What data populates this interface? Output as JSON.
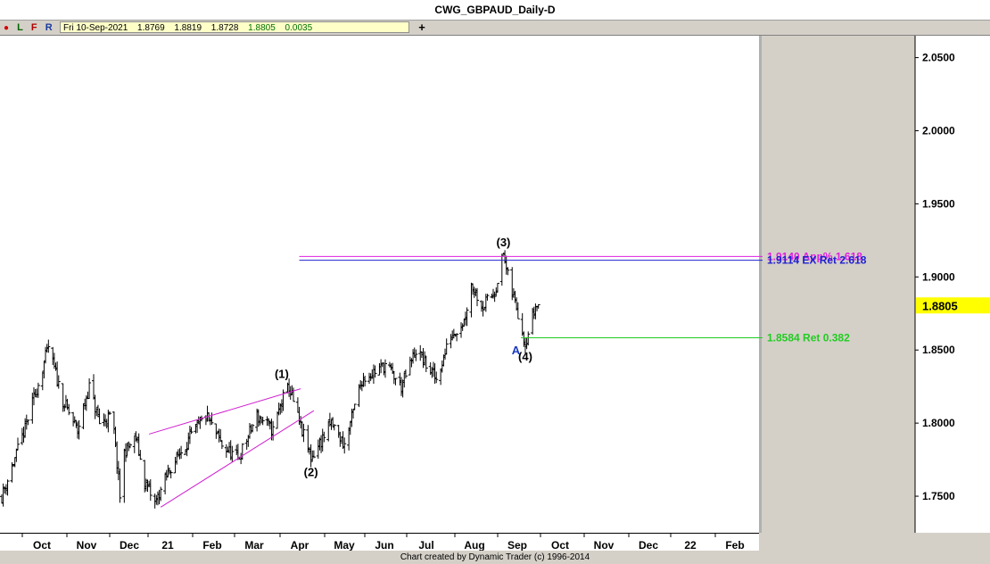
{
  "window": {
    "title": "CWG_GBPAUD_Daily-D"
  },
  "toolbar": {
    "letters": [
      "L",
      "F",
      "R"
    ],
    "ohlc": {
      "date": "Fri 10-Sep-2021",
      "open": "1.8769",
      "high": "1.8819",
      "low": "1.8728",
      "close": "1.8805",
      "change": "0.0035"
    },
    "plus_label": "+"
  },
  "footer": {
    "credit": "Chart created by Dynamic Trader  (c) 1996-2014"
  },
  "colors": {
    "price_bars": "#000000",
    "wedge": "#d020d0",
    "extension_magenta": "#e020e0",
    "extension_blue": "#2020d0",
    "retracement": "#22cc22",
    "wave_a": "#1a3ac0",
    "last_price_bg": "#ffff00"
  },
  "chart_data": {
    "type": "ohlc-bar",
    "symbol": "GBPAUD",
    "timeframe": "Daily",
    "y_axis": {
      "range": [
        1.725,
        2.065
      ],
      "ticks": [
        "2.0500",
        "2.0000",
        "1.9500",
        "1.9000",
        "1.8500",
        "1.8000",
        "1.7500"
      ],
      "last_price": "1.8805"
    },
    "x_axis": {
      "labels": [
        "Oct",
        "Nov",
        "Dec",
        "21",
        "Feb",
        "Mar",
        "Apr",
        "May",
        "Jun",
        "Jul",
        "Aug",
        "Sep",
        "Oct",
        "Nov",
        "Dec",
        "22",
        "Feb"
      ]
    },
    "path": [
      [
        "2020-09-21",
        1.75
      ],
      [
        "2020-10-05",
        1.79
      ],
      [
        "2020-10-14",
        1.82
      ],
      [
        "2020-10-23",
        1.852
      ],
      [
        "2020-11-02",
        1.815
      ],
      [
        "2020-11-12",
        1.795
      ],
      [
        "2020-11-20",
        1.825
      ],
      [
        "2020-11-27",
        1.8
      ],
      [
        "2020-12-06",
        1.805
      ],
      [
        "2020-12-11",
        1.75
      ],
      [
        "2020-12-14",
        1.78
      ],
      [
        "2020-12-22",
        1.79
      ],
      [
        "2020-12-28",
        1.76
      ],
      [
        "2021-01-04",
        1.745
      ],
      [
        "2021-01-15",
        1.77
      ],
      [
        "2021-01-28",
        1.79
      ],
      [
        "2021-02-08",
        1.805
      ],
      [
        "2021-02-19",
        1.785
      ],
      [
        "2021-03-02",
        1.775
      ],
      [
        "2021-03-15",
        1.805
      ],
      [
        "2021-03-26",
        1.795
      ],
      [
        "2021-04-01",
        1.815
      ],
      [
        "2021-04-06",
        1.825
      ],
      [
        "2021-04-13",
        1.8
      ],
      [
        "2021-04-21",
        1.776
      ],
      [
        "2021-05-05",
        1.8
      ],
      [
        "2021-05-14",
        1.785
      ],
      [
        "2021-05-26",
        1.83
      ],
      [
        "2021-06-11",
        1.84
      ],
      [
        "2021-06-22",
        1.825
      ],
      [
        "2021-07-02",
        1.85
      ],
      [
        "2021-07-16",
        1.83
      ],
      [
        "2021-07-26",
        1.86
      ],
      [
        "2021-08-04",
        1.87
      ],
      [
        "2021-08-09",
        1.895
      ],
      [
        "2021-08-17",
        1.88
      ],
      [
        "2021-08-25",
        1.89
      ],
      [
        "2021-08-31",
        1.9155
      ],
      [
        "2021-09-04",
        1.895
      ],
      [
        "2021-09-09",
        1.88
      ],
      [
        "2021-09-15",
        1.855
      ],
      [
        "2021-09-22",
        1.88
      ],
      [
        "2021-09-24",
        1.8805
      ]
    ],
    "wedge": {
      "upper": [
        [
          "2020-12-31",
          1.7925
        ],
        [
          "2021-04-14",
          1.8235
        ]
      ],
      "lower": [
        [
          "2021-01-08",
          1.7425
        ],
        [
          "2021-04-23",
          1.8085
        ]
      ]
    },
    "levels": [
      {
        "value": 1.914,
        "label": "1.9140 App% 1.618",
        "color": "#e020e0",
        "from": "2021-04-13"
      },
      {
        "value": 1.9114,
        "label": "1.9114 EX Ret 2.618",
        "color": "#2020d0",
        "from": "2021-04-13"
      },
      {
        "value": 1.8584,
        "label": "1.8584 Ret 0.382",
        "color": "#22cc22",
        "from": "2021-09-12"
      }
    ],
    "wave_labels": [
      {
        "label": "(1)",
        "date": "2021-04-01",
        "value": 1.8255
      },
      {
        "label": "(2)",
        "date": "2021-04-21",
        "value": 1.776
      },
      {
        "label": "(3)",
        "date": "2021-08-31",
        "value": 1.9155
      },
      {
        "label": "(4)",
        "date": "2021-09-15",
        "value": 1.855
      },
      {
        "label": "A",
        "date": "2021-09-11",
        "value": 1.855
      }
    ]
  }
}
